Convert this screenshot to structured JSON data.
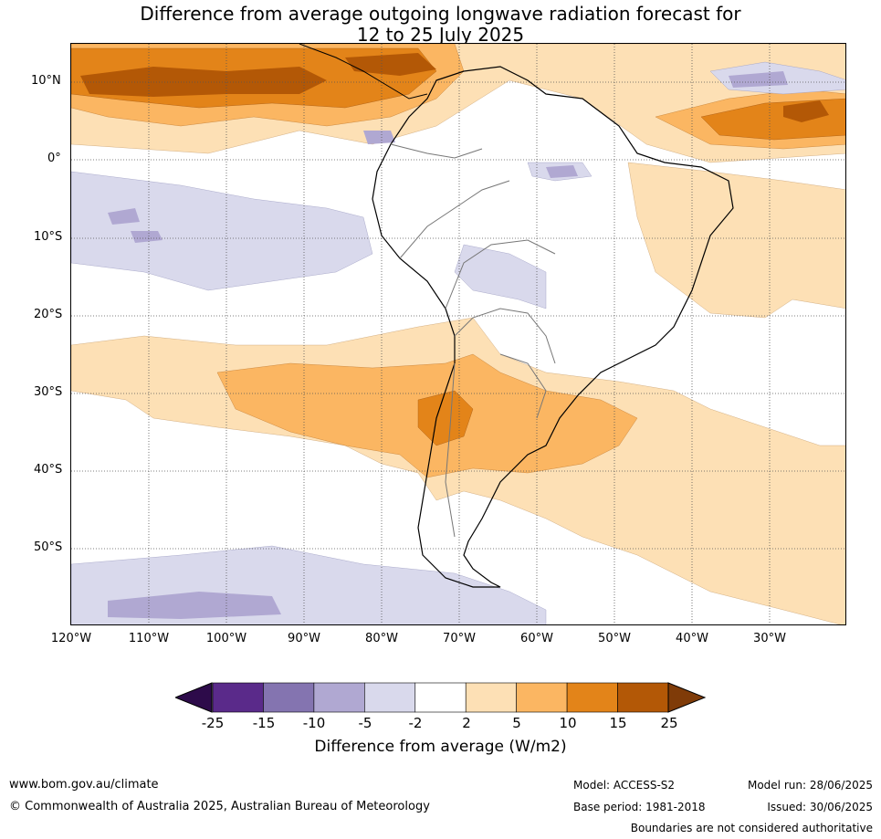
{
  "title_line1": "Difference from average outgoing longwave radiation forecast for",
  "title_line2": "12 to 25 July 2025",
  "lat_labels": [
    "10°N",
    "0°",
    "10°S",
    "20°S",
    "30°S",
    "40°S",
    "50°S"
  ],
  "lon_labels": [
    "120°W",
    "110°W",
    "100°W",
    "90°W",
    "80°W",
    "70°W",
    "60°W",
    "50°W",
    "40°W",
    "30°W"
  ],
  "colorbar": {
    "ticks": [
      "-25",
      "-15",
      "-10",
      "-5",
      "-2",
      "2",
      "5",
      "10",
      "15",
      "25"
    ],
    "colors": {
      "below_min": "#2d0b4a",
      "c_m25_m15": "#5a2a8a",
      "c_m15_m10": "#8474b0",
      "c_m10_m5": "#b0a8d2",
      "c_m5_m2": "#d9d9ec",
      "c_m2_2": "#ffffff",
      "c_2_5": "#fde0b5",
      "c_5_10": "#fbb662",
      "c_10_15": "#e38419",
      "c_15_25": "#b35806",
      "above_max": "#7f3b08"
    },
    "title": "Difference from average (W/m2)"
  },
  "footer": {
    "website": "www.bom.gov.au/climate",
    "copyright": "© Commonwealth of Australia 2025, Australian Bureau of Meteorology",
    "model": "Model: ACCESS-S2",
    "base_period": "Base period: 1981-2018",
    "model_run": "Model run: 28/06/2025",
    "issued": "Issued: 30/06/2025",
    "disclaimer": "Boundaries are not considered authoritative"
  }
}
